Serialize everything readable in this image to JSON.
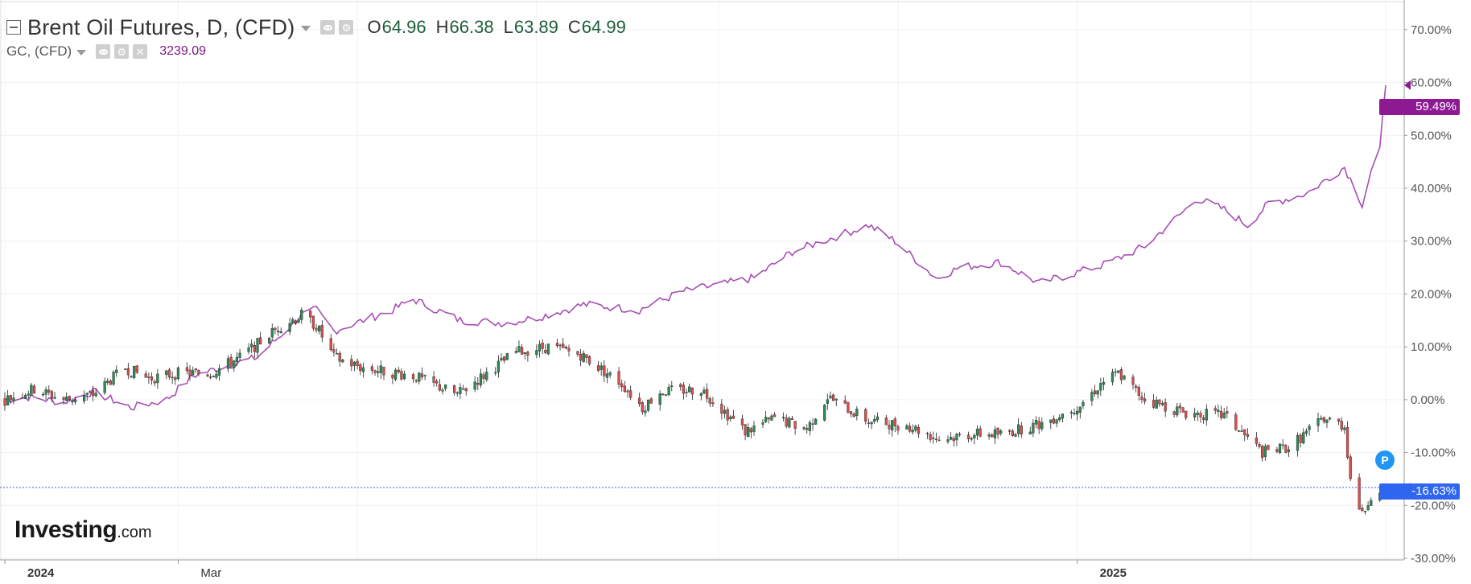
{
  "legend": {
    "main": {
      "symbol": "Brent Oil Futures, D, (CFD)",
      "open_label": "O",
      "open": "64.96",
      "high_label": "H",
      "high": "66.38",
      "low_label": "L",
      "low": "63.89",
      "close_label": "C",
      "close": "64.99"
    },
    "compare": {
      "symbol": "GC, (CFD)",
      "last": "3239.09"
    }
  },
  "chart_data": {
    "type": "line",
    "mode": "percent-change comparison",
    "y_axis": {
      "range": [
        -30,
        75
      ],
      "ticks": [
        "70.00%",
        "60.00%",
        "50.00%",
        "40.00%",
        "30.00%",
        "20.00%",
        "10.00%",
        "0.00%",
        "-10.00%",
        "-20.00%",
        "-30.00%"
      ]
    },
    "x_axis": {
      "labels": [
        "2024",
        "Mar",
        "2025"
      ],
      "start": "2024-01-02",
      "end": "2025-04-16"
    },
    "grid": true,
    "series": [
      {
        "name": "GC, (CFD)",
        "style": "line",
        "color": "#a64fb3",
        "last_label": "59.49%",
        "points": [
          [
            "2024-01-02",
            0
          ],
          [
            "2024-01-10",
            0.5
          ],
          [
            "2024-01-22",
            -0.5
          ],
          [
            "2024-02-01",
            1.5
          ],
          [
            "2024-02-14",
            -1.5
          ],
          [
            "2024-02-26",
            0
          ],
          [
            "2024-03-06",
            4.5
          ],
          [
            "2024-03-15",
            6
          ],
          [
            "2024-03-28",
            8
          ],
          [
            "2024-04-12",
            16
          ],
          [
            "2024-04-17",
            17
          ],
          [
            "2024-04-23",
            13
          ],
          [
            "2024-05-03",
            15
          ],
          [
            "2024-05-13",
            17
          ],
          [
            "2024-05-20",
            19
          ],
          [
            "2024-06-05",
            15
          ],
          [
            "2024-06-20",
            14.5
          ],
          [
            "2024-07-01",
            15.5
          ],
          [
            "2024-07-17",
            18
          ],
          [
            "2024-08-05",
            17
          ],
          [
            "2024-08-20",
            20.5
          ],
          [
            "2024-09-13",
            23
          ],
          [
            "2024-09-26",
            28
          ],
          [
            "2024-10-22",
            33
          ],
          [
            "2024-10-31",
            30
          ],
          [
            "2024-11-14",
            23
          ],
          [
            "2024-11-22",
            25
          ],
          [
            "2024-12-06",
            26
          ],
          [
            "2024-12-19",
            22
          ],
          [
            "2025-01-10",
            25.5
          ],
          [
            "2025-01-24",
            29
          ],
          [
            "2025-02-11",
            38
          ],
          [
            "2025-02-20",
            36
          ],
          [
            "2025-02-28",
            33
          ],
          [
            "2025-03-07",
            37
          ],
          [
            "2025-03-20",
            39
          ],
          [
            "2025-04-02",
            44
          ],
          [
            "2025-04-08",
            37
          ],
          [
            "2025-04-11",
            43
          ],
          [
            "2025-04-14",
            47
          ],
          [
            "2025-04-16",
            59.49
          ]
        ]
      },
      {
        "name": "Brent Oil Futures, D, (CFD)",
        "style": "candlestick",
        "color_up": "#2e8b57",
        "color_down": "#d94f4f",
        "last_label": "-16.63%",
        "points": [
          [
            "2024-01-02",
            0
          ],
          [
            "2024-01-12",
            2
          ],
          [
            "2024-01-22",
            0
          ],
          [
            "2024-02-01",
            1
          ],
          [
            "2024-02-12",
            6
          ],
          [
            "2024-02-20",
            4
          ],
          [
            "2024-03-01",
            5
          ],
          [
            "2024-03-12",
            5
          ],
          [
            "2024-03-22",
            8
          ],
          [
            "2024-04-05",
            14
          ],
          [
            "2024-04-12",
            16
          ],
          [
            "2024-04-17",
            14
          ],
          [
            "2024-04-23",
            8
          ],
          [
            "2024-05-03",
            6
          ],
          [
            "2024-05-20",
            4.5
          ],
          [
            "2024-06-04",
            1
          ],
          [
            "2024-06-14",
            5
          ],
          [
            "2024-06-24",
            9
          ],
          [
            "2024-07-05",
            10
          ],
          [
            "2024-07-16",
            8.5
          ],
          [
            "2024-07-30",
            3
          ],
          [
            "2024-08-06",
            -1.5
          ],
          [
            "2024-08-12",
            1.5
          ],
          [
            "2024-08-26",
            2
          ],
          [
            "2024-09-10",
            -6
          ],
          [
            "2024-09-20",
            -3.5
          ],
          [
            "2024-10-01",
            -5.5
          ],
          [
            "2024-10-08",
            0.5
          ],
          [
            "2024-10-22",
            -4
          ],
          [
            "2024-11-05",
            -5
          ],
          [
            "2024-11-15",
            -7.5
          ],
          [
            "2024-11-26",
            -6.5
          ],
          [
            "2024-12-06",
            -6.5
          ],
          [
            "2024-12-20",
            -4.5
          ],
          [
            "2025-01-02",
            -1
          ],
          [
            "2025-01-10",
            3.5
          ],
          [
            "2025-01-15",
            5
          ],
          [
            "2025-01-24",
            0
          ],
          [
            "2025-02-07",
            -2.5
          ],
          [
            "2025-02-20",
            -3
          ],
          [
            "2025-03-05",
            -10
          ],
          [
            "2025-03-14",
            -9
          ],
          [
            "2025-03-26",
            -3.5
          ],
          [
            "2025-04-02",
            -5
          ],
          [
            "2025-04-04",
            -15
          ],
          [
            "2025-04-08",
            -22
          ],
          [
            "2025-04-11",
            -18
          ],
          [
            "2025-04-14",
            -17
          ],
          [
            "2025-04-16",
            -16.63
          ]
        ]
      }
    ],
    "watermark": "Investing.com"
  },
  "ui": {
    "gold_badge": "59.49%",
    "oil_badge": "-16.63%",
    "p_marker": "P",
    "watermark_main": "Investing",
    "watermark_suffix": ".com"
  }
}
